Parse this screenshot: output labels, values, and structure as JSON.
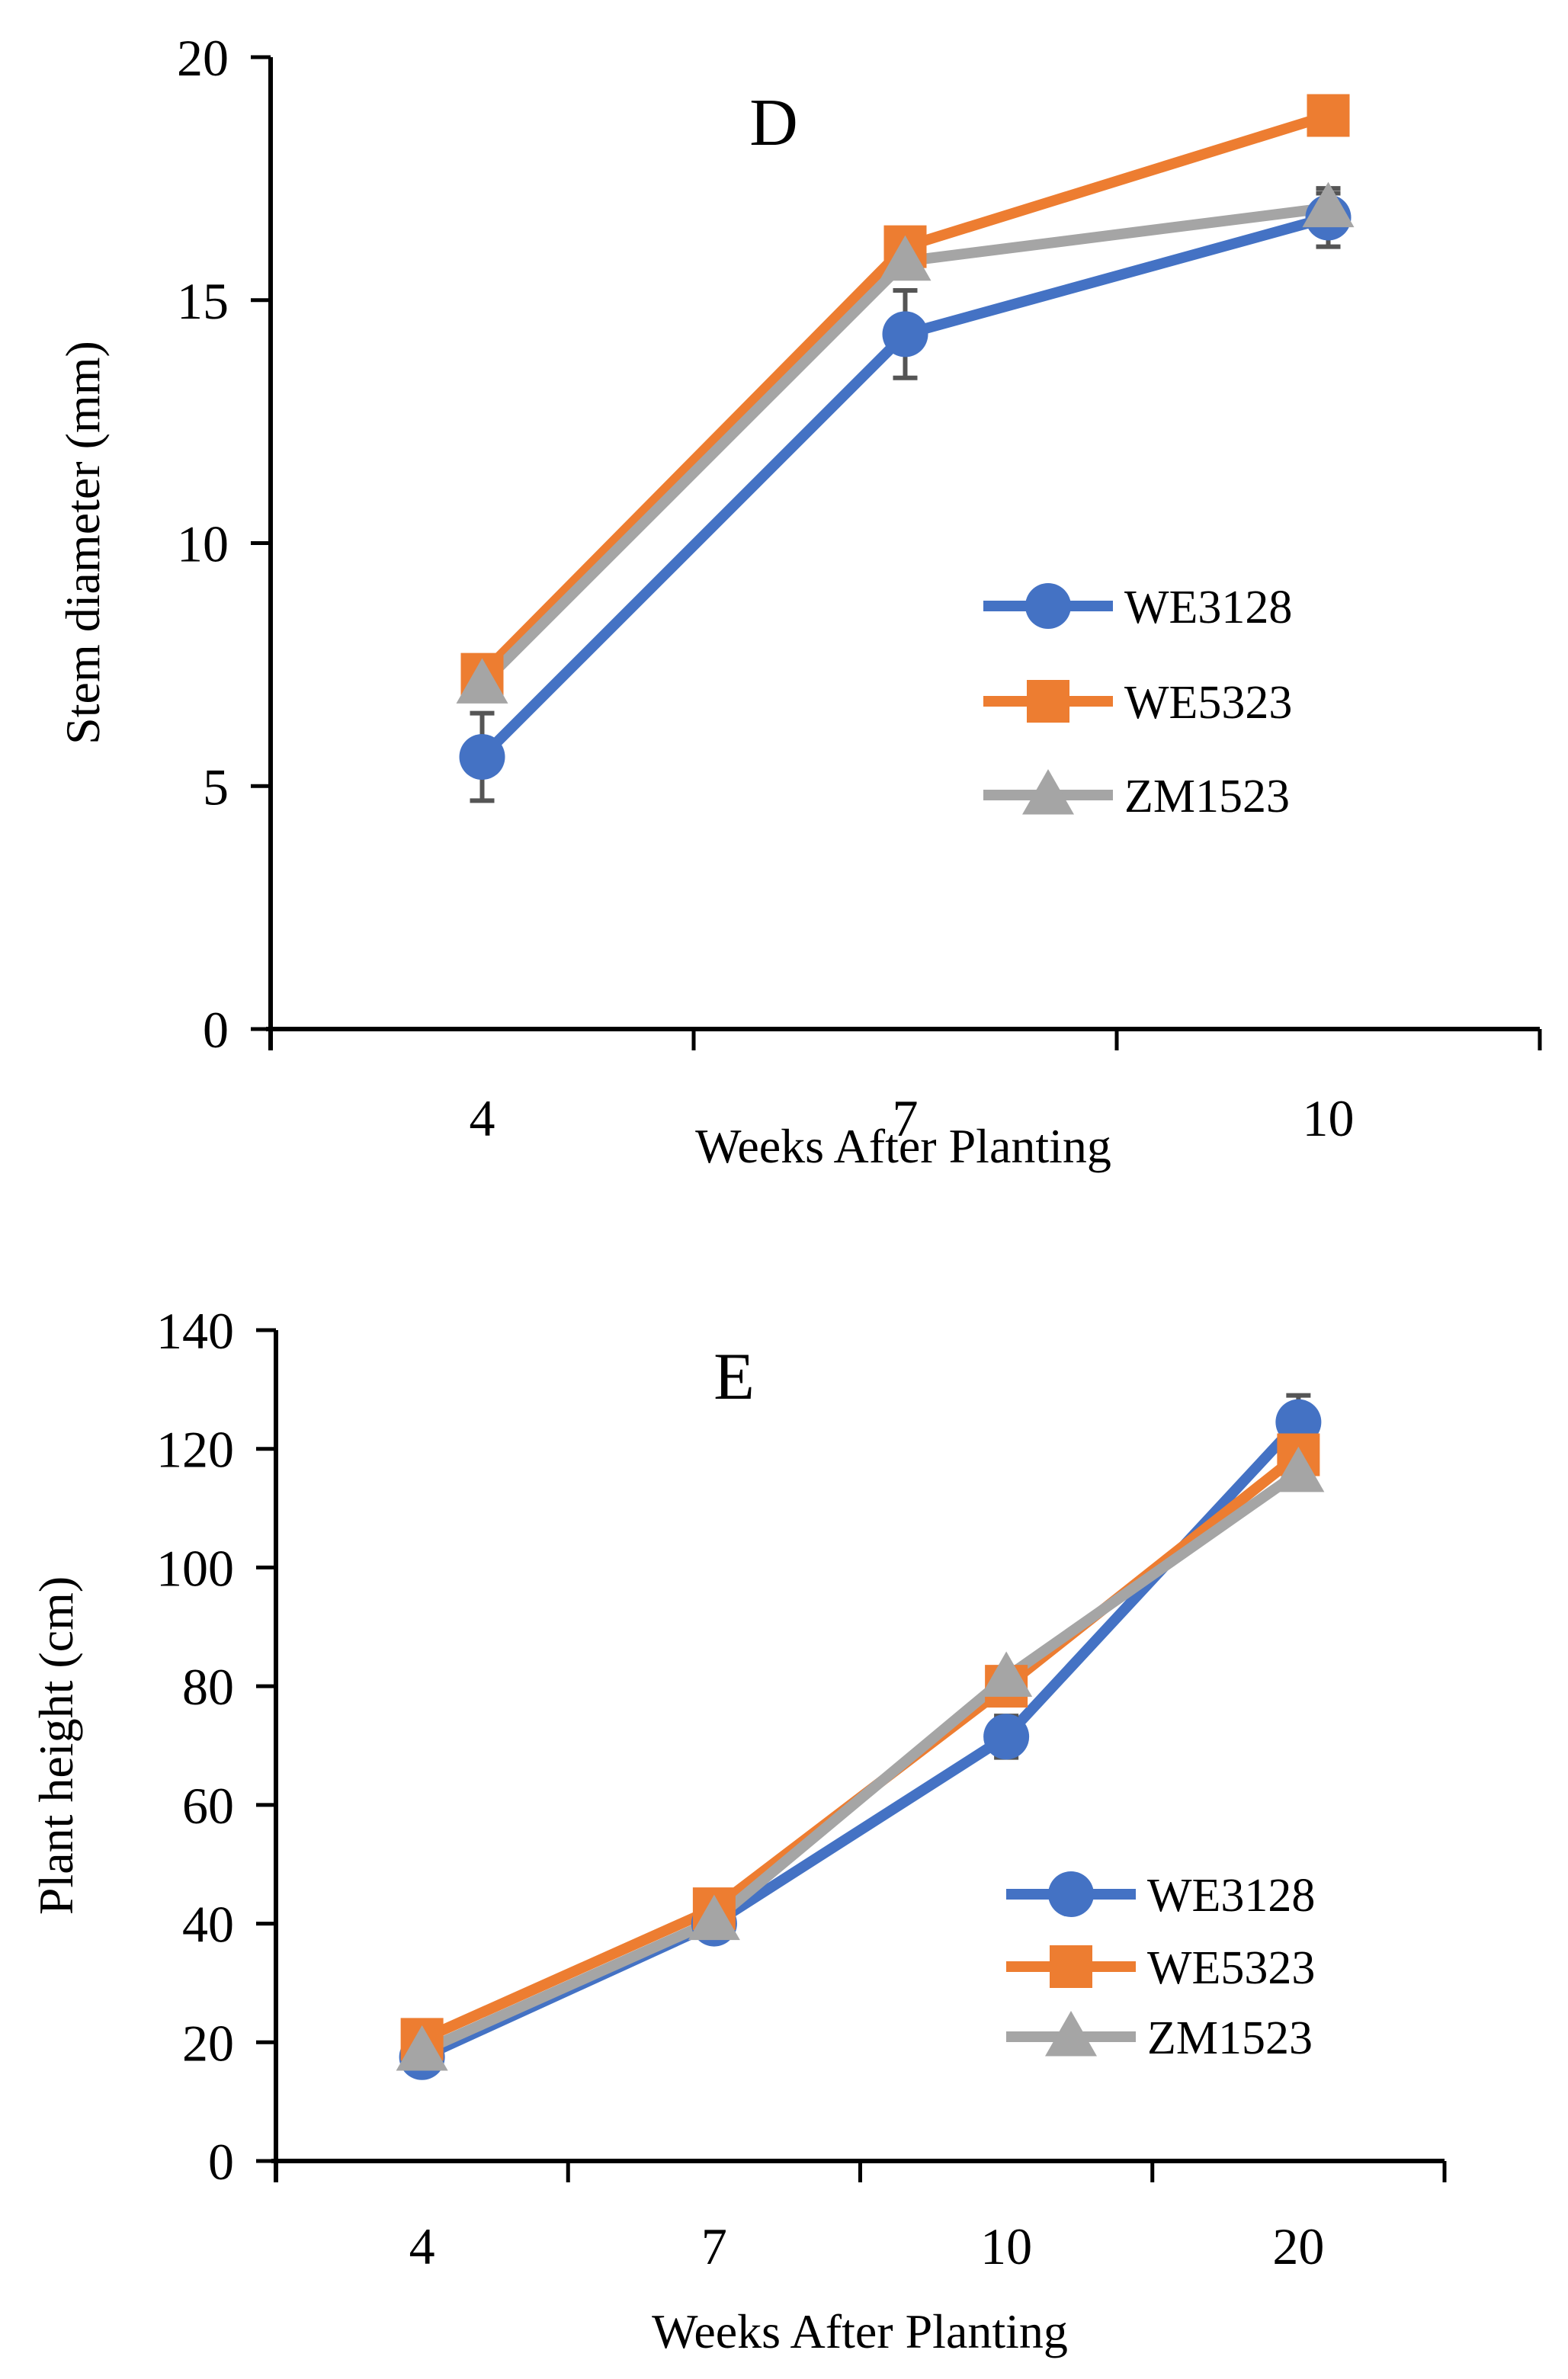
{
  "chart_data": [
    {
      "type": "line",
      "panel_label": "D",
      "title": "",
      "xlabel": "Weeks After Planting",
      "ylabel": "Stem diameter (mm)",
      "categories": [
        "4",
        "7",
        "10"
      ],
      "ylim": [
        0,
        20
      ],
      "yticks": [
        "0",
        "5",
        "10",
        "15",
        "20"
      ],
      "grid": false,
      "legend_position": "right-middle",
      "series": [
        {
          "name": "WE3128",
          "marker": "circle",
          "color": "#4472C4",
          "values": [
            5.6,
            14.3,
            16.7
          ],
          "errors": [
            0.9,
            0.9,
            0.6
          ]
        },
        {
          "name": "WE5323",
          "marker": "square",
          "color": "#ED7D31",
          "values": [
            7.3,
            16.1,
            18.8
          ],
          "errors": [
            0.2,
            0.2,
            0.2
          ]
        },
        {
          "name": "ZM1523",
          "marker": "triangle",
          "color": "#A5A5A5",
          "values": [
            7.1,
            15.8,
            16.9
          ],
          "errors": [
            0.2,
            0.2,
            0.3
          ]
        }
      ]
    },
    {
      "type": "line",
      "panel_label": "E",
      "title": "",
      "xlabel": "Weeks After Planting",
      "ylabel": "Plant height (cm)",
      "categories": [
        "4",
        "7",
        "10",
        "20"
      ],
      "ylim": [
        0,
        140
      ],
      "yticks": [
        "0",
        "20",
        "40",
        "60",
        "80",
        "100",
        "120",
        "140"
      ],
      "grid": false,
      "legend_position": "right-lower",
      "series": [
        {
          "name": "WE3128",
          "marker": "circle",
          "color": "#4472C4",
          "values": [
            17.5,
            40,
            71.5,
            124.5
          ],
          "errors": [
            1,
            1.5,
            3.5,
            4.5
          ]
        },
        {
          "name": "WE5323",
          "marker": "square",
          "color": "#ED7D31",
          "values": [
            20.5,
            42.5,
            80,
            119
          ],
          "errors": [
            1,
            1,
            1,
            1.5
          ]
        },
        {
          "name": "ZM1523",
          "marker": "triangle",
          "color": "#A5A5A5",
          "values": [
            18.5,
            40.5,
            81.5,
            116
          ],
          "errors": [
            1,
            1,
            1,
            1.5
          ]
        }
      ]
    }
  ]
}
